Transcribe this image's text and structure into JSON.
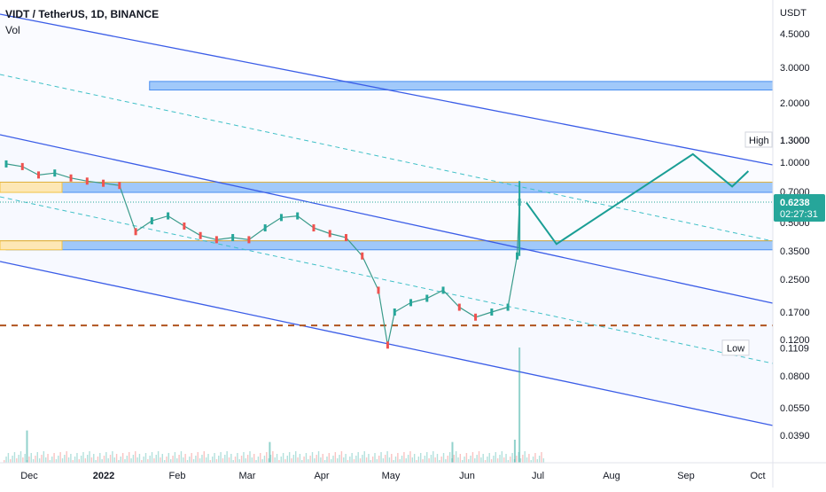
{
  "header": {
    "symbol_line": "VIDT / TetherUS, 1D, BINANCE",
    "volume_label": "Vol"
  },
  "price_scale": {
    "currency": "USDT",
    "ticks": [
      "4.5000",
      "3.0000",
      "2.0000",
      "1.3000",
      "1.0000",
      "0.7000",
      "0.5000",
      "0.3500",
      "0.2500",
      "0.1700",
      "0.1200",
      "0.0800",
      "0.0550",
      "0.0390"
    ],
    "high_label": "High",
    "high_value": "1.3000",
    "low_label": "Low",
    "low_value": "0.1109",
    "last_price": "0.6238",
    "countdown": "02:27:31"
  },
  "chart_data": {
    "type": "candlestick",
    "title": "VIDT / TetherUS, 1D, BINANCE",
    "y_unit": "USDT",
    "y_scale": "log",
    "ylim": [
      0.034,
      6.0
    ],
    "x_tick_labels": [
      "Dec",
      "2022",
      "Feb",
      "Mar",
      "Apr",
      "May",
      "Jun",
      "Jul",
      "Aug",
      "Sep",
      "Oct"
    ],
    "price_series": [
      {
        "date": "2021-11-28",
        "close": 0.98
      },
      {
        "date": "2021-12-05",
        "close": 0.95
      },
      {
        "date": "2021-12-12",
        "close": 0.86
      },
      {
        "date": "2021-12-19",
        "close": 0.88
      },
      {
        "date": "2021-12-26",
        "close": 0.83
      },
      {
        "date": "2022-01-02",
        "close": 0.8
      },
      {
        "date": "2022-01-09",
        "close": 0.78
      },
      {
        "date": "2022-01-16",
        "close": 0.76
      },
      {
        "date": "2022-01-23",
        "close": 0.44
      },
      {
        "date": "2022-01-30",
        "close": 0.5
      },
      {
        "date": "2022-02-06",
        "close": 0.53
      },
      {
        "date": "2022-02-13",
        "close": 0.47
      },
      {
        "date": "2022-02-20",
        "close": 0.42
      },
      {
        "date": "2022-02-27",
        "close": 0.4
      },
      {
        "date": "2022-03-06",
        "close": 0.41
      },
      {
        "date": "2022-03-13",
        "close": 0.4
      },
      {
        "date": "2022-03-20",
        "close": 0.46
      },
      {
        "date": "2022-03-27",
        "close": 0.52
      },
      {
        "date": "2022-04-03",
        "close": 0.53
      },
      {
        "date": "2022-04-10",
        "close": 0.46
      },
      {
        "date": "2022-04-17",
        "close": 0.43
      },
      {
        "date": "2022-04-24",
        "close": 0.41
      },
      {
        "date": "2022-05-01",
        "close": 0.33
      },
      {
        "date": "2022-05-08",
        "close": 0.22
      },
      {
        "date": "2022-05-12",
        "close": 0.115
      },
      {
        "date": "2022-05-15",
        "close": 0.17
      },
      {
        "date": "2022-05-22",
        "close": 0.19
      },
      {
        "date": "2022-05-29",
        "close": 0.2
      },
      {
        "date": "2022-06-05",
        "close": 0.22
      },
      {
        "date": "2022-06-12",
        "close": 0.18
      },
      {
        "date": "2022-06-19",
        "close": 0.16
      },
      {
        "date": "2022-06-26",
        "close": 0.17
      },
      {
        "date": "2022-07-03",
        "close": 0.18
      },
      {
        "date": "2022-07-07",
        "close": 0.33
      },
      {
        "date": "2022-07-08",
        "close": 0.6238
      }
    ],
    "volume_spikes": [
      {
        "date": "2021-12-07",
        "rel": 0.28
      },
      {
        "date": "2022-03-22",
        "rel": 0.18
      },
      {
        "date": "2022-06-09",
        "rel": 0.18
      },
      {
        "date": "2022-07-06",
        "rel": 0.2
      },
      {
        "date": "2022-07-08",
        "rel": 1.0
      }
    ],
    "zones": [
      {
        "from": 2.35,
        "to": 2.6,
        "start": "2022-01-29"
      },
      {
        "from": 0.7,
        "to": 0.79,
        "start": "2021-11-28"
      },
      {
        "from": 0.355,
        "to": 0.395,
        "start": "2021-11-28"
      }
    ],
    "horizontal_level": 0.145,
    "projection": [
      {
        "date": "2022-07-11",
        "price": 0.62
      },
      {
        "date": "2022-07-24",
        "price": 0.38
      },
      {
        "date": "2022-09-21",
        "price": 1.1
      },
      {
        "date": "2022-10-08",
        "price": 0.75
      },
      {
        "date": "2022-10-15",
        "price": 0.9
      }
    ]
  }
}
